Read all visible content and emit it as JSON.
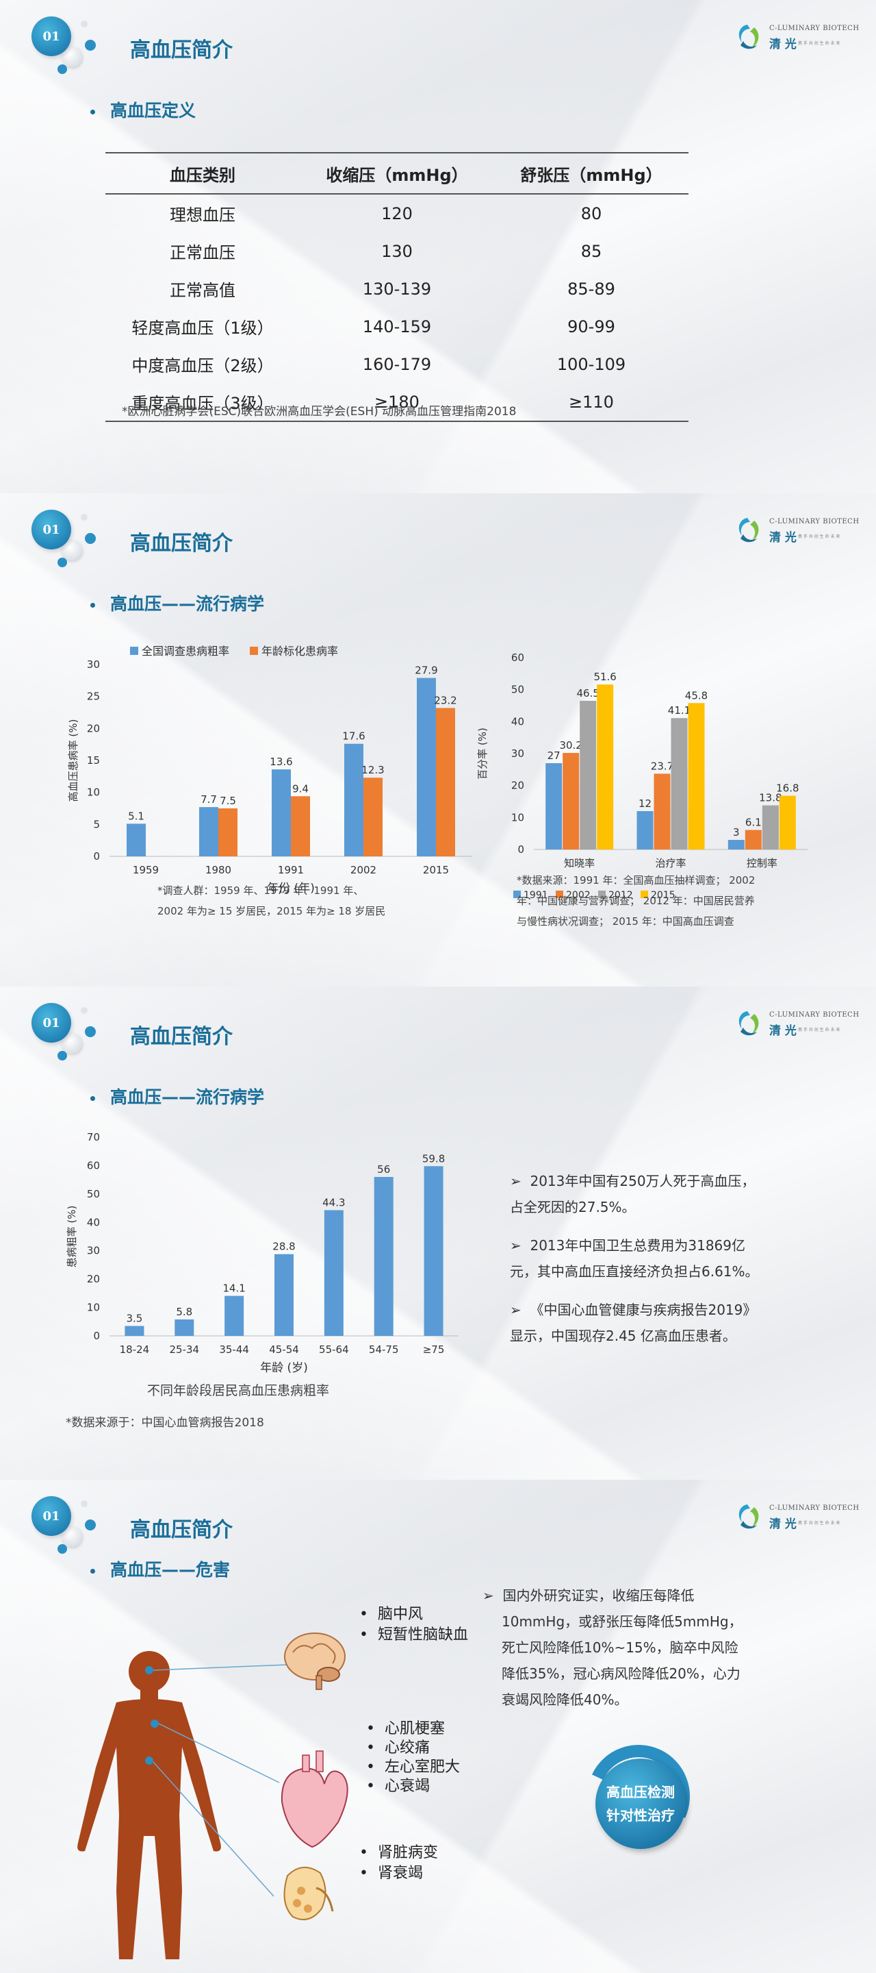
{
  "common": {
    "badge": "01",
    "title": "高血压简介",
    "logo_en": "C-LUMINARY BIOTECH",
    "logo_cn": "清 光",
    "logo_slogan": "携 手 共 创 生 命 未 来"
  },
  "slide1": {
    "subhead": "高血压定义",
    "table": {
      "headers": [
        "血压类别",
        "收缩压（mmHg）",
        "舒张压（mmHg）"
      ],
      "rows": [
        [
          "理想血压",
          "120",
          "80"
        ],
        [
          "正常血压",
          "130",
          "85"
        ],
        [
          "正常高值",
          "130-139",
          "85-89"
        ],
        [
          "轻度高血压（1级）",
          "140-159",
          "90-99"
        ],
        [
          "中度高血压（2级）",
          "160-179",
          "100-109"
        ],
        [
          "重度高血压（3级）",
          "≥180",
          "≥110"
        ]
      ]
    },
    "note": "*欧洲心脏病学会(ESC)联合欧洲高血压学会(ESH) 动脉高血压管理指南2018"
  },
  "slide2": {
    "subhead": "高血压——流行病学",
    "note1_line1": "*调查人群：1959 年、1979 年、1991 年、",
    "note1_line2": "2002 年为≥ 15 岁居民，2015 年为≥ 18 岁居民",
    "note2_line1": "*数据来源：1991 年：全国高血压抽样调查； 2002",
    "note2_line2": "年：中国健康与营养调查； 2012 年：中国居民营养",
    "note2_line3": "与慢性病状况调查； 2015 年：中国高血压调查"
  },
  "slide3": {
    "subhead": "高血压——流行病学",
    "caption": "不同年龄段居民高血压患病粗率",
    "source": "*数据来源于：中国心血管病报告2018",
    "bullets": [
      [
        "2013年中国有250万人死于高血压，",
        "占全死因的27.5%。"
      ],
      [
        "2013年中国卫生总费用为31869亿",
        "元，其中高血压直接经济负担占6.61%。"
      ],
      [
        "《中国心血管健康与疾病报告2019》",
        "显示，中国现存2.45 亿高血压患者。"
      ]
    ]
  },
  "slide4": {
    "subhead": "高血压——危害",
    "brain": [
      "脑中风",
      "短暂性脑缺血"
    ],
    "heart": [
      "心肌梗塞",
      "心绞痛",
      "左心室肥大",
      "心衰竭"
    ],
    "kidney": [
      "肾脏病变",
      "肾衰竭"
    ],
    "paragraph": [
      "国内外研究证实，收缩压每降低",
      "10mmHg，或舒张压每降低5mmHg，",
      "死亡风险降低10%~15%，脑卒中风险",
      "降低35%，冠心病风险降低20%，心力",
      "衰竭风险降低40%。"
    ],
    "cta_line1": "高血压检测",
    "cta_line2": "针对性治疗"
  },
  "chart_data": [
    {
      "type": "bar",
      "categories": [
        "1959",
        "1980",
        "1991",
        "2002",
        "2015"
      ],
      "series": [
        {
          "name": "全国调查患病粗率",
          "values": [
            5.1,
            7.7,
            13.6,
            17.6,
            27.9
          ]
        },
        {
          "name": "年龄标化患病率",
          "values": [
            null,
            7.5,
            9.4,
            12.3,
            23.2
          ]
        }
      ],
      "xlabel": "年份 (年)",
      "ylabel": "高血压患病率 (%)",
      "ylim": [
        0,
        30
      ],
      "yticks": [
        0,
        5,
        10,
        15,
        20,
        25,
        30
      ],
      "legend": "top",
      "colors": [
        "#5b9bd5",
        "#ed7d31"
      ]
    },
    {
      "type": "bar",
      "categories": [
        "知晓率",
        "治疗率",
        "控制率"
      ],
      "series": [
        {
          "name": "1991",
          "values": [
            27,
            12,
            3
          ]
        },
        {
          "name": "2002",
          "values": [
            30.2,
            23.7,
            6.1
          ]
        },
        {
          "name": "2012",
          "values": [
            46.5,
            41.1,
            13.8
          ]
        },
        {
          "name": "2015",
          "values": [
            51.6,
            45.8,
            16.8
          ]
        }
      ],
      "ylabel": "百分率 (%)",
      "ylim": [
        0,
        60
      ],
      "yticks": [
        0,
        10,
        20,
        30,
        40,
        50,
        60
      ],
      "legend": "bottom",
      "colors": [
        "#5b9bd5",
        "#ed7d31",
        "#a5a5a5",
        "#ffc000"
      ]
    },
    {
      "type": "bar",
      "categories": [
        "18-24",
        "25-34",
        "35-44",
        "45-54",
        "55-64",
        "54-75",
        "≥75"
      ],
      "values": [
        3.5,
        5.8,
        14.1,
        28.8,
        44.3,
        56,
        59.8
      ],
      "xlabel": "年龄 (岁)",
      "ylabel": "患病粗率 (%)",
      "ylim": [
        0,
        70
      ],
      "yticks": [
        0,
        10,
        20,
        30,
        40,
        50,
        60,
        70
      ],
      "colors": [
        "#5b9bd5"
      ]
    }
  ]
}
